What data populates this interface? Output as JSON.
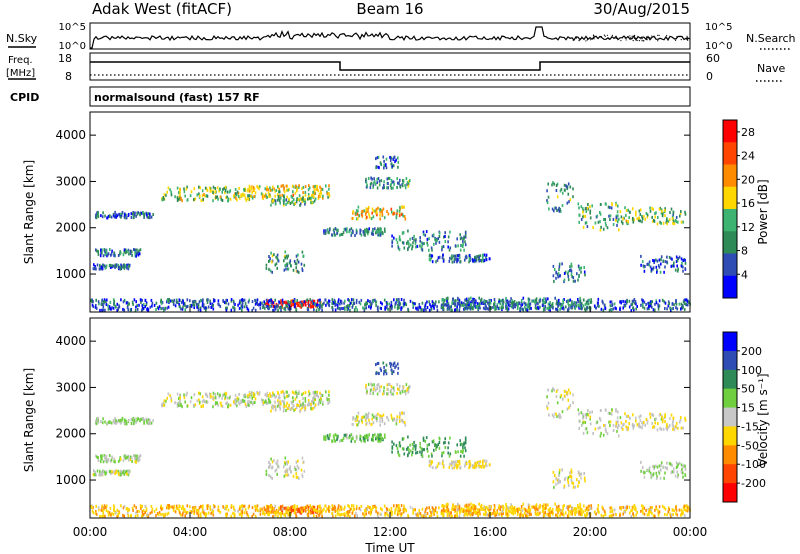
{
  "header": {
    "station": "Adak West (fitACF)",
    "beam": "Beam 16",
    "date": "30/Aug/2015"
  },
  "sky_panel": {
    "left_label": "N.Sky",
    "right_label": "N.Search",
    "left_ticks": [
      "10^5",
      "10^0"
    ],
    "right_ticks": [
      "10^5",
      "10^0"
    ]
  },
  "freq_panel": {
    "left_label_1": "Freq.",
    "left_label_2": "[MHz]",
    "right_label": "Nave",
    "left_ticks": [
      "18",
      "8"
    ],
    "right_ticks": [
      "60",
      "0"
    ]
  },
  "cpid": {
    "label": "CPID",
    "program": "normalsound (fast) 157 RF"
  },
  "colors": {
    "power_scale": [
      "#0000ff",
      "#2f4bb4",
      "#2e8b57",
      "#3cb371",
      "#ffd700",
      "#ff8c00",
      "#ff4500",
      "#ff0000"
    ],
    "velocity_scale": [
      "#ff0000",
      "#ff4500",
      "#ff8c00",
      "#ffd700",
      "#c8c8c8",
      "#6fcf3f",
      "#2e8b57",
      "#2f4bb4",
      "#0000ff"
    ],
    "ground_scatter": "#c0c0c0"
  },
  "chart_data": [
    {
      "type": "heatmap",
      "name_hint": "power",
      "ylabel": "Slant Range [km]",
      "yticks": [
        "4000",
        "3000",
        "2000",
        "1000"
      ],
      "ylim": [
        180,
        4500
      ],
      "colorbar_label": "Power [dB]",
      "colorbar_ticks": [
        "28",
        "24",
        "20",
        "16",
        "12",
        "8",
        "4"
      ],
      "colorbar_range": [
        0,
        30
      ]
    },
    {
      "type": "heatmap",
      "name_hint": "velocity",
      "ylabel": "Slant Range [km]",
      "yticks": [
        "4000",
        "3000",
        "2000",
        "1000"
      ],
      "ylim": [
        180,
        4500
      ],
      "colorbar_label": "Velocity [m s⁻¹]",
      "colorbar_ticks": [
        "200",
        "100",
        "50",
        "15",
        "-15",
        "-50",
        "-100",
        "-200"
      ],
      "xlabel": "Time UT",
      "xticks": [
        "00:00",
        "04:00",
        "08:00",
        "12:00",
        "16:00",
        "20:00",
        "00:00"
      ],
      "xlim_hours": [
        0,
        24
      ]
    }
  ],
  "scatter_blobs": [
    {
      "t0": 0.2,
      "t1": 2.0,
      "r0": 1350,
      "r1": 1500,
      "p": 8,
      "v": 10
    },
    {
      "t0": 0.1,
      "t1": 1.7,
      "r0": 1070,
      "r1": 1170,
      "p": 7,
      "v": 5
    },
    {
      "t0": 0.2,
      "t1": 2.5,
      "r0": 2180,
      "r1": 2300,
      "p": 7,
      "v": 20
    },
    {
      "t0": 2.8,
      "t1": 6.5,
      "r0": 2550,
      "r1": 2850,
      "p": 14,
      "v": 0
    },
    {
      "t0": 6.0,
      "t1": 9.6,
      "r0": 2600,
      "r1": 2880,
      "p": 17,
      "v": 5
    },
    {
      "t0": 7.2,
      "t1": 9.0,
      "r0": 2450,
      "r1": 2650,
      "p": 12,
      "v": -10
    },
    {
      "t0": 10.4,
      "t1": 12.6,
      "r0": 2150,
      "r1": 2420,
      "p": 18,
      "v": -5
    },
    {
      "t0": 11.0,
      "t1": 12.8,
      "r0": 2820,
      "r1": 3050,
      "p": 10,
      "v": 0
    },
    {
      "t0": 11.4,
      "t1": 12.3,
      "r0": 3250,
      "r1": 3500,
      "p": 7,
      "v": 120
    },
    {
      "t0": 9.3,
      "t1": 11.8,
      "r0": 1800,
      "r1": 1950,
      "p": 9,
      "v": 40
    },
    {
      "t0": 12.0,
      "t1": 15.0,
      "r0": 1480,
      "r1": 1900,
      "p": 9,
      "v": 60
    },
    {
      "t0": 13.5,
      "t1": 16.0,
      "r0": 1220,
      "r1": 1380,
      "p": 7,
      "v": -20
    },
    {
      "t0": 7.0,
      "t1": 8.6,
      "r0": 1000,
      "r1": 1450,
      "p": 10,
      "v": -5
    },
    {
      "t0": 18.2,
      "t1": 19.3,
      "r0": 2300,
      "r1": 2950,
      "p": 10,
      "v": 0
    },
    {
      "t0": 19.4,
      "t1": 21.2,
      "r0": 1900,
      "r1": 2500,
      "p": 11,
      "v": 0
    },
    {
      "t0": 21.0,
      "t1": 23.8,
      "r0": 2050,
      "r1": 2400,
      "p": 13,
      "v": -10
    },
    {
      "t0": 22.0,
      "t1": 23.8,
      "r0": 1000,
      "r1": 1350,
      "p": 6,
      "v": 20
    },
    {
      "t0": 18.5,
      "t1": 19.8,
      "r0": 800,
      "r1": 1200,
      "p": 9,
      "v": -10
    },
    {
      "t0": 7.0,
      "t1": 9.2,
      "r0": 250,
      "r1": 400,
      "p": 27,
      "v": -110
    },
    {
      "t0": 0.0,
      "t1": 24.0,
      "r0": 180,
      "r1": 420,
      "p": 6,
      "v": -40
    },
    {
      "t0": 14.0,
      "t1": 20.0,
      "r0": 200,
      "r1": 450,
      "p": 9,
      "v": -40
    }
  ]
}
